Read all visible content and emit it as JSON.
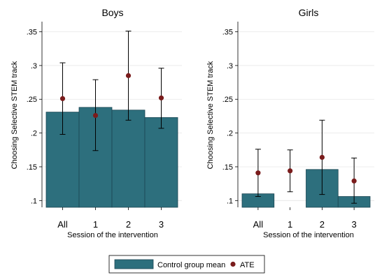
{
  "chart_data": [
    {
      "type": "bar",
      "title": "Boys",
      "xlabel": "Session of the intervention",
      "ylabel": "Choosing Selective STEM track",
      "categories": [
        "All",
        "1",
        "2",
        "3"
      ],
      "ylim": [
        0.09,
        0.365
      ],
      "yticks": [
        0.1,
        0.15,
        0.2,
        0.25,
        0.3,
        0.35
      ],
      "yticklabels": [
        ".1",
        ".15",
        ".2",
        ".25",
        ".3",
        ".35"
      ],
      "series": [
        {
          "name": "Control group mean",
          "kind": "bar",
          "values": [
            0.231,
            0.238,
            0.234,
            0.223
          ]
        },
        {
          "name": "ATE",
          "kind": "point",
          "values": [
            0.251,
            0.226,
            0.285,
            0.252
          ],
          "ci_low": [
            0.198,
            0.174,
            0.219,
            0.207
          ],
          "ci_high": [
            0.304,
            0.279,
            0.351,
            0.296
          ]
        }
      ]
    },
    {
      "type": "bar",
      "title": "Girls",
      "xlabel": "Session of the intervention",
      "ylabel": "Choosing Selective STEM track",
      "categories": [
        "All",
        "1",
        "2",
        "3"
      ],
      "ylim": [
        0.09,
        0.365
      ],
      "yticks": [
        0.1,
        0.15,
        0.2,
        0.25,
        0.3,
        0.35
      ],
      "yticklabels": [
        ".1",
        ".15",
        ".2",
        ".25",
        ".3",
        ".35"
      ],
      "series": [
        {
          "name": "Control group mean",
          "kind": "bar",
          "values": [
            0.11,
            null,
            0.146,
            0.106
          ]
        },
        {
          "name": "ATE",
          "kind": "point",
          "values": [
            0.141,
            0.144,
            0.164,
            0.129
          ],
          "ci_low": [
            0.106,
            0.113,
            0.109,
            0.096
          ],
          "ci_high": [
            0.176,
            0.175,
            0.219,
            0.163
          ]
        }
      ]
    }
  ],
  "legend": {
    "placement": "bottom",
    "items": [
      {
        "label": "Control group mean",
        "color": "#2d6f7d",
        "shape": "bar"
      },
      {
        "label": "ATE",
        "color": "#7a1c1c",
        "shape": "dot"
      }
    ]
  },
  "colors": {
    "bar": "#2d6f7d",
    "bar_edge": "#1b4653",
    "point": "#7a1c1c",
    "ci": "#000000"
  }
}
